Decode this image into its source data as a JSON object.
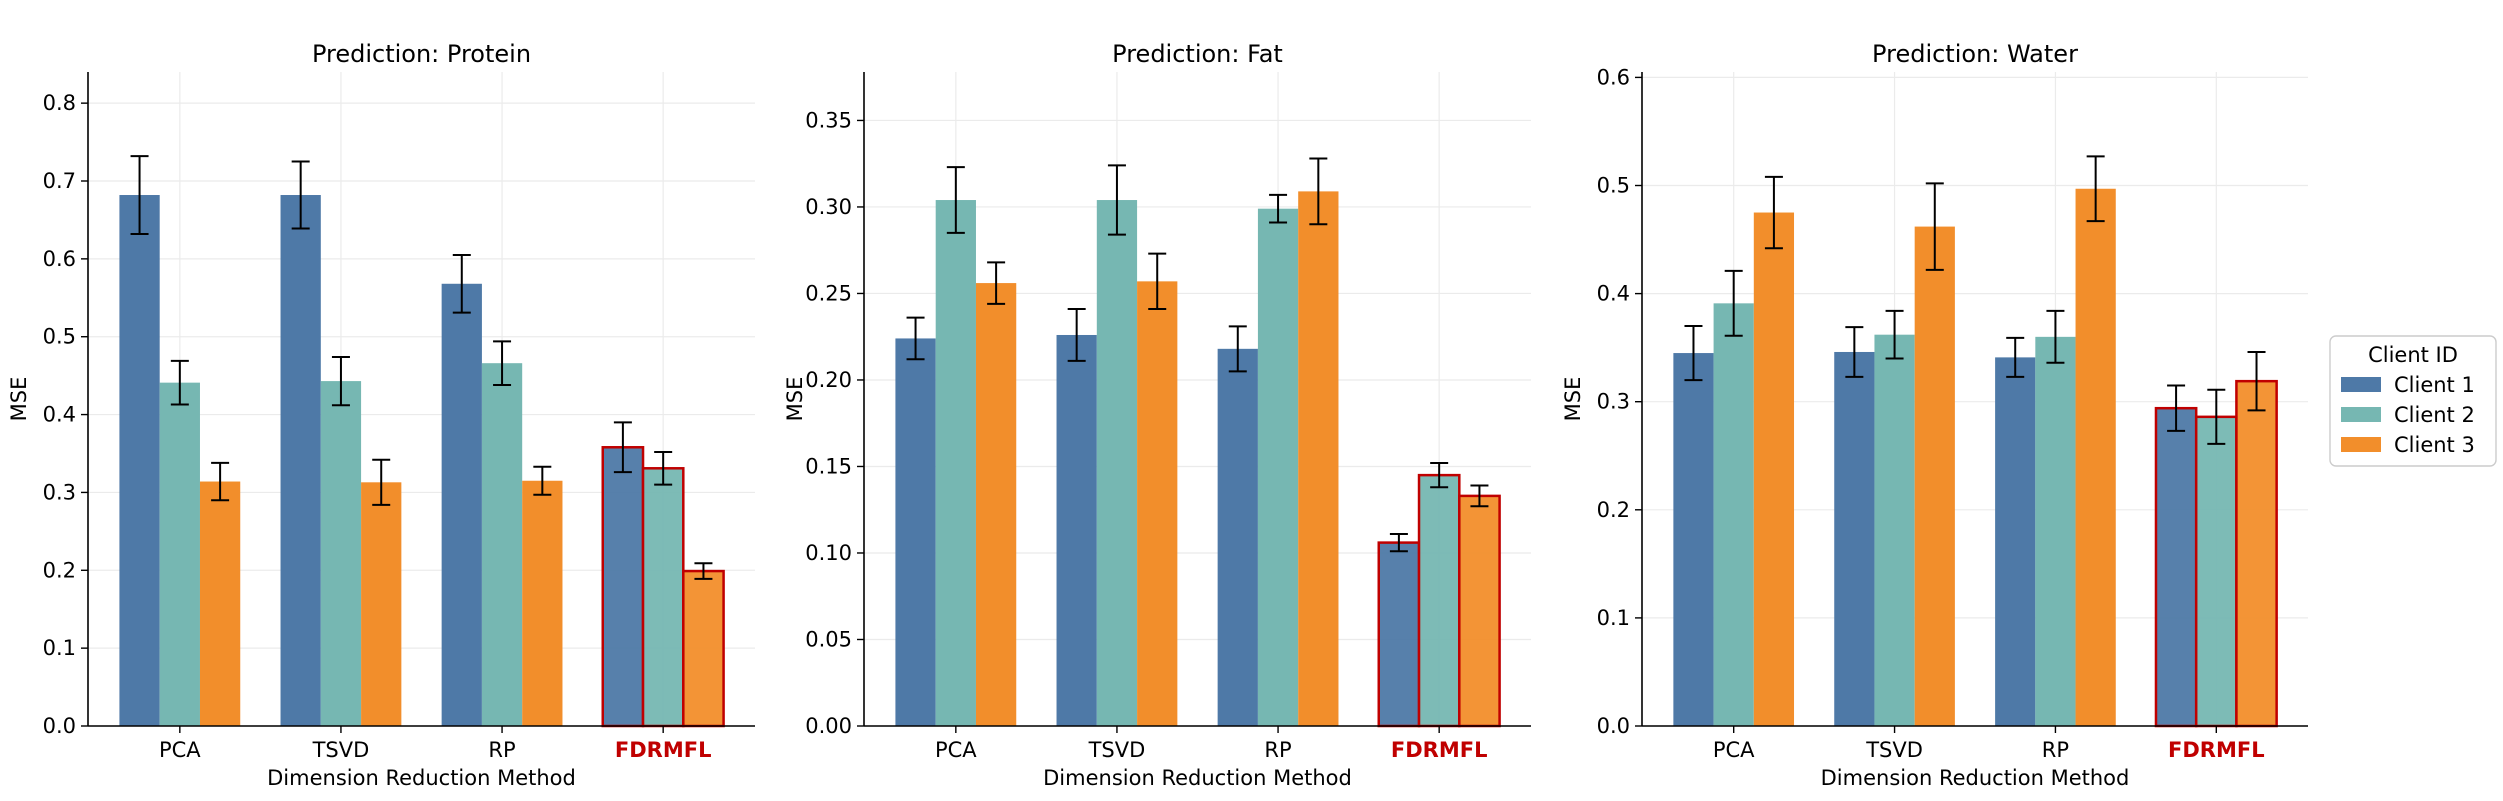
{
  "colors": {
    "client1": "#4e79a7",
    "client2": "#76b7b2",
    "client3": "#f28e2b",
    "highlight_edge": "#c00000",
    "error_bar": "#000000",
    "grid": "#ebebeb"
  },
  "legend": {
    "title": "Client ID",
    "position": "right",
    "entries": [
      "Client 1",
      "Client 2",
      "Client 3"
    ]
  },
  "highlight_category": "FDRMFL",
  "chart_data": [
    {
      "type": "bar",
      "title": "Prediction: Protein",
      "xlabel": "Dimension Reduction Method",
      "ylabel": "MSE",
      "categories": [
        "PCA",
        "TSVD",
        "RP",
        "FDRMFL"
      ],
      "ylim": [
        0,
        0.84
      ],
      "yticks": [
        0.0,
        0.1,
        0.2,
        0.3,
        0.4,
        0.5,
        0.6,
        0.7,
        0.8
      ],
      "ytick_labels": [
        "0.0",
        "0.1",
        "0.2",
        "0.3",
        "0.4",
        "0.5",
        "0.6",
        "0.7",
        "0.8"
      ],
      "grid": true,
      "series": [
        {
          "name": "Client 1",
          "values": [
            0.682,
            0.682,
            0.568,
            0.358
          ],
          "errors": [
            0.05,
            0.043,
            0.037,
            0.032
          ]
        },
        {
          "name": "Client 2",
          "values": [
            0.441,
            0.443,
            0.466,
            0.331
          ],
          "errors": [
            0.028,
            0.031,
            0.028,
            0.021
          ]
        },
        {
          "name": "Client 3",
          "values": [
            0.314,
            0.313,
            0.315,
            0.199
          ],
          "errors": [
            0.024,
            0.029,
            0.018,
            0.01
          ]
        }
      ]
    },
    {
      "type": "bar",
      "title": "Prediction: Fat",
      "xlabel": "Dimension Reduction Method",
      "ylabel": "MSE",
      "categories": [
        "PCA",
        "TSVD",
        "RP",
        "FDRMFL"
      ],
      "ylim": [
        0,
        0.378
      ],
      "yticks": [
        0.0,
        0.05,
        0.1,
        0.15,
        0.2,
        0.25,
        0.3,
        0.35
      ],
      "ytick_labels": [
        "0.00",
        "0.05",
        "0.10",
        "0.15",
        "0.20",
        "0.25",
        "0.30",
        "0.35"
      ],
      "grid": true,
      "series": [
        {
          "name": "Client 1",
          "values": [
            0.224,
            0.226,
            0.218,
            0.106
          ],
          "errors": [
            0.012,
            0.015,
            0.013,
            0.005
          ]
        },
        {
          "name": "Client 2",
          "values": [
            0.304,
            0.304,
            0.299,
            0.145
          ],
          "errors": [
            0.019,
            0.02,
            0.008,
            0.007
          ]
        },
        {
          "name": "Client 3",
          "values": [
            0.256,
            0.257,
            0.309,
            0.133
          ],
          "errors": [
            0.012,
            0.016,
            0.019,
            0.006
          ]
        }
      ]
    },
    {
      "type": "bar",
      "title": "Prediction: Water",
      "xlabel": "Dimension Reduction Method",
      "ylabel": "MSE",
      "categories": [
        "PCA",
        "TSVD",
        "RP",
        "FDRMFL"
      ],
      "ylim": [
        0,
        0.605
      ],
      "yticks": [
        0.0,
        0.1,
        0.2,
        0.3,
        0.4,
        0.5,
        0.6
      ],
      "ytick_labels": [
        "0.0",
        "0.1",
        "0.2",
        "0.3",
        "0.4",
        "0.5",
        "0.6"
      ],
      "grid": true,
      "series": [
        {
          "name": "Client 1",
          "values": [
            0.345,
            0.346,
            0.341,
            0.294
          ],
          "errors": [
            0.025,
            0.023,
            0.018,
            0.021
          ]
        },
        {
          "name": "Client 2",
          "values": [
            0.391,
            0.362,
            0.36,
            0.286
          ],
          "errors": [
            0.03,
            0.022,
            0.024,
            0.025
          ]
        },
        {
          "name": "Client 3",
          "values": [
            0.475,
            0.462,
            0.497,
            0.319
          ],
          "errors": [
            0.033,
            0.04,
            0.03,
            0.027
          ]
        }
      ]
    }
  ]
}
